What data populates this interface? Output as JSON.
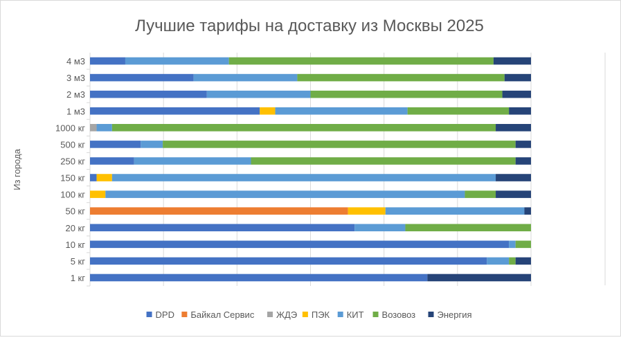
{
  "chart_data": {
    "type": "bar",
    "orientation": "horizontal",
    "stacked": "percent",
    "title": "Лучшие тарифы на доставку из Москвы 2025",
    "ylabel": "Из города",
    "xlabel": "",
    "xlim": [
      0,
      100
    ],
    "grid": true,
    "legend_position": "bottom",
    "categories": [
      "1 кг",
      "5 кг",
      "10 кг",
      "20 кг",
      "50 кг",
      "100 кг",
      "150 кг",
      "250 кг",
      "500 кг",
      "1000 кг",
      "1 м3",
      "2 м3",
      "3 м3",
      "4 м3"
    ],
    "series": [
      {
        "name": "DPD",
        "color": "#4472C4",
        "values": [
          76.5,
          90,
          95,
          60,
          0,
          0,
          1.5,
          10,
          11.5,
          0,
          38.5,
          26.5,
          23.5,
          8
        ]
      },
      {
        "name": "Байкал Сервис",
        "color": "#ED7D31",
        "values": [
          0,
          0,
          0,
          0,
          58.5,
          0,
          0,
          0,
          0,
          0,
          0,
          0,
          0,
          0
        ]
      },
      {
        "name": "ЖДЭ",
        "color": "#A5A5A5",
        "values": [
          0,
          0,
          0,
          0,
          0,
          0,
          0,
          0,
          0,
          1.5,
          0,
          0,
          0,
          0
        ]
      },
      {
        "name": "ПЭК",
        "color": "#FFC000",
        "values": [
          0,
          0,
          0,
          0,
          8.5,
          3.5,
          3.5,
          0,
          0,
          0,
          3.5,
          0,
          0,
          0
        ]
      },
      {
        "name": "КИТ",
        "color": "#5B9BD5",
        "values": [
          0,
          5,
          1.5,
          11.5,
          31.5,
          81.5,
          87,
          26.5,
          5,
          3.5,
          30,
          23.5,
          23.5,
          23.5
        ]
      },
      {
        "name": "Возовоз",
        "color": "#70AD47",
        "values": [
          0,
          1.5,
          3.5,
          28.5,
          0,
          7,
          0,
          60,
          80,
          87,
          23,
          43.5,
          47,
          60
        ]
      },
      {
        "name": "Энергия",
        "color": "#264478",
        "values": [
          23.5,
          3.5,
          0,
          0,
          1.5,
          8,
          8,
          3.5,
          3.5,
          8,
          5,
          6.5,
          6,
          8.5
        ]
      }
    ]
  }
}
